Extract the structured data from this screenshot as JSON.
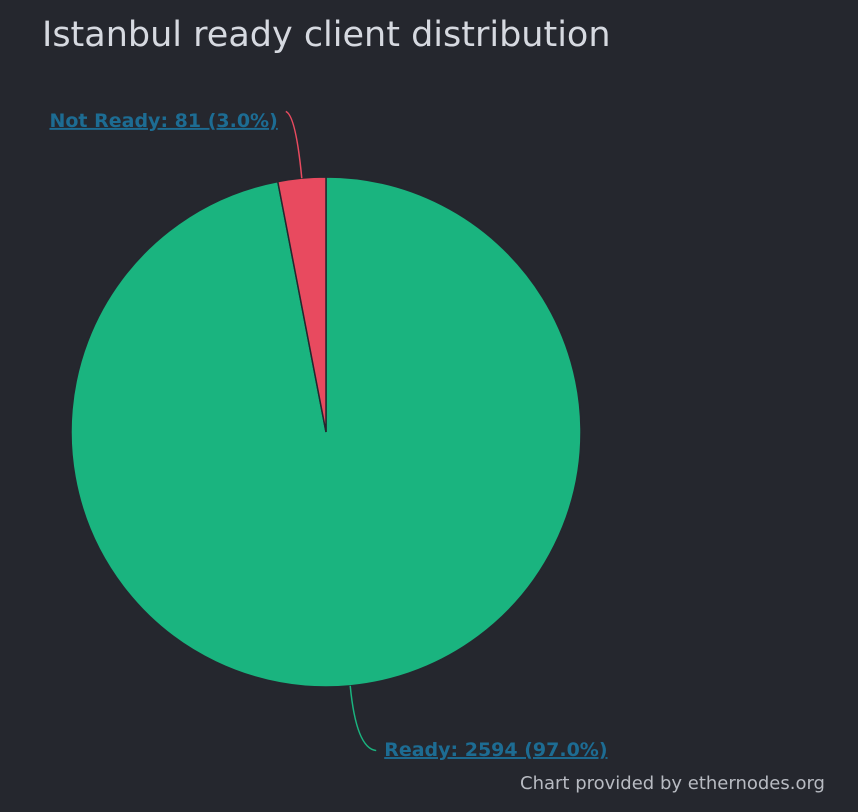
{
  "chart_data": {
    "type": "pie",
    "title": "Istanbul ready client distribution",
    "categories": [
      "Ready",
      "Not Ready"
    ],
    "values": [
      2594,
      81
    ],
    "value_labels": [
      "Ready: 2594 (97.0%)",
      "Not Ready: 81 (3.0%)"
    ],
    "colors": [
      "#1ab47f",
      "#e84a5f"
    ],
    "credit": "Chart provided by ethernodes.org"
  }
}
